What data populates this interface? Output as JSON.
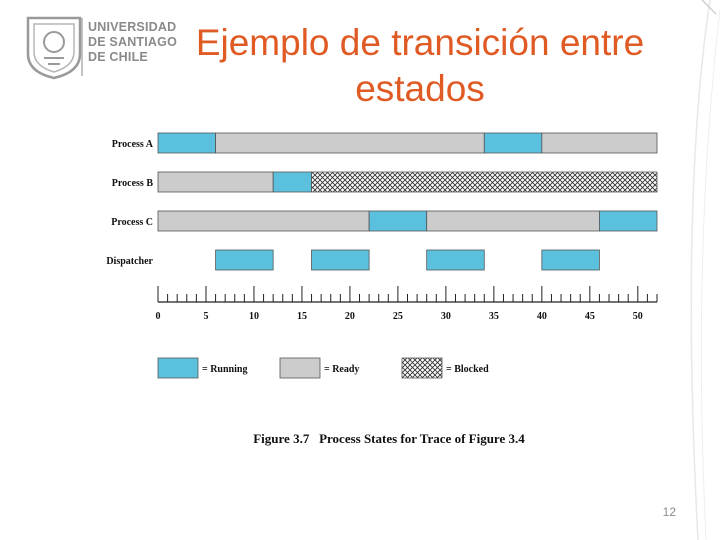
{
  "logo": {
    "lines": [
      "UNIVERSIDAD",
      "DE SANTIAGO",
      "DE CHILE"
    ]
  },
  "title": "Ejemplo de transición entre estados",
  "page_number": "12",
  "colors": {
    "title": "#e05a24",
    "running": "#5bc0de",
    "ready": "#cccccc",
    "blocked": "#ffffff"
  },
  "chart_data": {
    "type": "timeline",
    "rows": [
      {
        "label": "Process A",
        "segments": [
          {
            "state": "running",
            "start": 0,
            "end": 6
          },
          {
            "state": "ready",
            "start": 6,
            "end": 34
          },
          {
            "state": "running",
            "start": 34,
            "end": 40
          },
          {
            "state": "ready",
            "start": 40,
            "end": 52
          }
        ]
      },
      {
        "label": "Process B",
        "segments": [
          {
            "state": "ready",
            "start": 0,
            "end": 12
          },
          {
            "state": "running",
            "start": 12,
            "end": 16
          },
          {
            "state": "blocked",
            "start": 16,
            "end": 52
          }
        ]
      },
      {
        "label": "Process C",
        "segments": [
          {
            "state": "ready",
            "start": 0,
            "end": 22
          },
          {
            "state": "running",
            "start": 22,
            "end": 28
          },
          {
            "state": "ready",
            "start": 28,
            "end": 46
          },
          {
            "state": "running",
            "start": 46,
            "end": 52
          }
        ]
      },
      {
        "label": "Dispatcher",
        "segments": [
          {
            "state": "running",
            "start": 6,
            "end": 12
          },
          {
            "state": "running",
            "start": 16,
            "end": 22
          },
          {
            "state": "running",
            "start": 28,
            "end": 34
          },
          {
            "state": "running",
            "start": 40,
            "end": 46
          }
        ]
      }
    ],
    "x_range": [
      0,
      52
    ],
    "tick_step": 1,
    "tick_labels": [
      0,
      5,
      10,
      15,
      20,
      25,
      30,
      35,
      40,
      45,
      50
    ],
    "legend": [
      {
        "state": "running",
        "label": "= Running"
      },
      {
        "state": "ready",
        "label": "= Ready"
      },
      {
        "state": "blocked",
        "label": "= Blocked"
      }
    ],
    "caption": "Figure 3.7   Process States for Trace of Figure 3.4"
  }
}
